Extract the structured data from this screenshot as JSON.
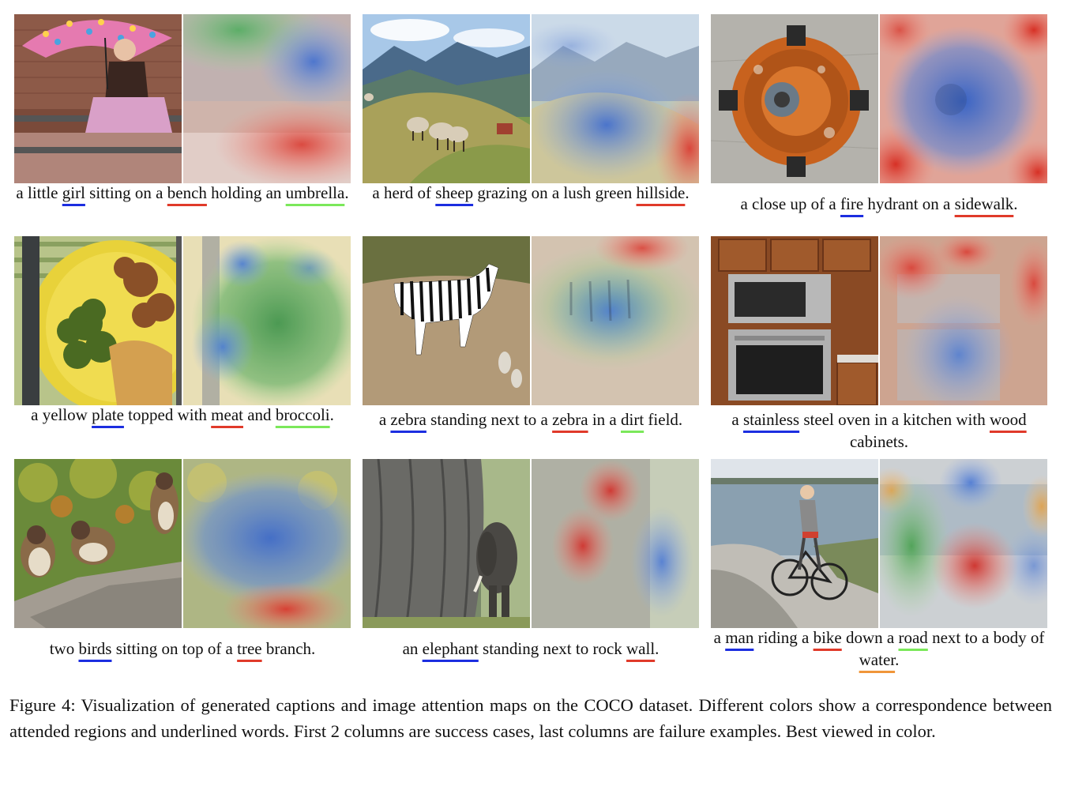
{
  "underline_colors": {
    "blue": "#1c2ee0",
    "red": "#e03a2a",
    "green": "#7be85a",
    "orange": "#f0963a"
  },
  "panels": [
    {
      "name": "girl-bench-umbrella",
      "caption": [
        {
          "t": "a little "
        },
        {
          "t": "girl",
          "u": "blue"
        },
        {
          "t": " sitting on a "
        },
        {
          "t": "bench",
          "u": "red"
        },
        {
          "t": " holding an "
        },
        {
          "t": "umbrella",
          "u": "green"
        },
        {
          "t": "."
        }
      ]
    },
    {
      "name": "sheep-hillside",
      "caption": [
        {
          "t": "a herd of "
        },
        {
          "t": "sheep",
          "u": "blue"
        },
        {
          "t": " grazing on a lush green "
        },
        {
          "t": "hillside",
          "u": "red"
        },
        {
          "t": "."
        }
      ]
    },
    {
      "name": "fire-hydrant-sidewalk",
      "caption": [
        {
          "t": "a close up of a "
        },
        {
          "t": "fire",
          "u": "blue"
        },
        {
          "t": " hydrant on a "
        },
        {
          "t": "sidewalk",
          "u": "red"
        },
        {
          "t": "."
        }
      ]
    },
    {
      "name": "plate-meat-broccoli",
      "caption": [
        {
          "t": "a yellow "
        },
        {
          "t": "plate",
          "u": "blue"
        },
        {
          "t": " topped with "
        },
        {
          "t": "meat",
          "u": "red"
        },
        {
          "t": " and "
        },
        {
          "t": "broccoli",
          "u": "green"
        },
        {
          "t": "."
        }
      ]
    },
    {
      "name": "zebra-dirt-field",
      "caption": [
        {
          "t": "a "
        },
        {
          "t": "zebra",
          "u": "blue"
        },
        {
          "t": " standing next to a "
        },
        {
          "t": "zebra",
          "u": "red"
        },
        {
          "t": " in a "
        },
        {
          "t": "dirt",
          "u": "green"
        },
        {
          "t": " field."
        }
      ]
    },
    {
      "name": "stainless-oven-wood",
      "caption": [
        {
          "t": "a "
        },
        {
          "t": "stainless",
          "u": "blue"
        },
        {
          "t": " steel oven in a kitchen with "
        },
        {
          "t": "wood",
          "u": "red"
        },
        {
          "t": " cabinets."
        }
      ]
    },
    {
      "name": "birds-tree-branch",
      "caption": [
        {
          "t": "two "
        },
        {
          "t": "birds",
          "u": "blue"
        },
        {
          "t": " sitting on top of a "
        },
        {
          "t": "tree",
          "u": "red"
        },
        {
          "t": " branch."
        }
      ]
    },
    {
      "name": "elephant-rock-wall",
      "caption": [
        {
          "t": "an "
        },
        {
          "t": "elephant",
          "u": "blue"
        },
        {
          "t": " standing next to rock "
        },
        {
          "t": "wall",
          "u": "red"
        },
        {
          "t": "."
        }
      ]
    },
    {
      "name": "man-bike-road-water",
      "caption": [
        {
          "t": "a "
        },
        {
          "t": "man",
          "u": "blue"
        },
        {
          "t": " riding a "
        },
        {
          "t": "bike",
          "u": "red"
        },
        {
          "t": " down a "
        },
        {
          "t": "road",
          "u": "green"
        },
        {
          "t": " next to a body of "
        },
        {
          "t": "water",
          "u": "orange"
        },
        {
          "t": "."
        }
      ]
    }
  ],
  "figure_caption": "Figure 4:  Visualization of generated captions and image attention maps on the COCO dataset.  Different colors show a correspondence between attended regions and underlined words. First 2 columns are success cases, last columns are failure examples. Best viewed in color."
}
